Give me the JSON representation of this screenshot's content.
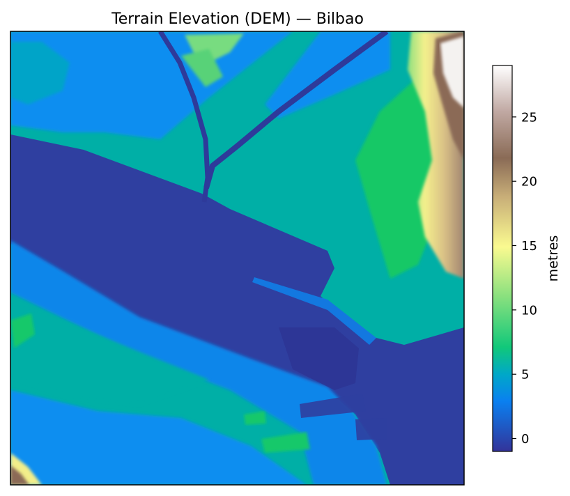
{
  "chart_data": {
    "type": "heatmap",
    "title": "Terrain Elevation (DEM) — Bilbao",
    "xlabel": "",
    "ylabel": "",
    "axes_ticks_visible": false,
    "grid": false,
    "colormap": "terrain",
    "colorbar": {
      "label": "metres",
      "range": [
        -1,
        29
      ],
      "ticks": [
        0,
        5,
        10,
        15,
        20,
        25
      ],
      "tick_labels": [
        "0",
        "5",
        "10",
        "15",
        "20",
        "25"
      ],
      "placement": "right"
    },
    "colors": {
      "water_channel": "#2e3d9f",
      "low_land": "#0b8ef0",
      "plain": "#00b0a8",
      "green": "#10c860",
      "hill_light": "#f5f28a",
      "hill_brown": "#8b6a57",
      "peak": "#fafafa"
    }
  }
}
